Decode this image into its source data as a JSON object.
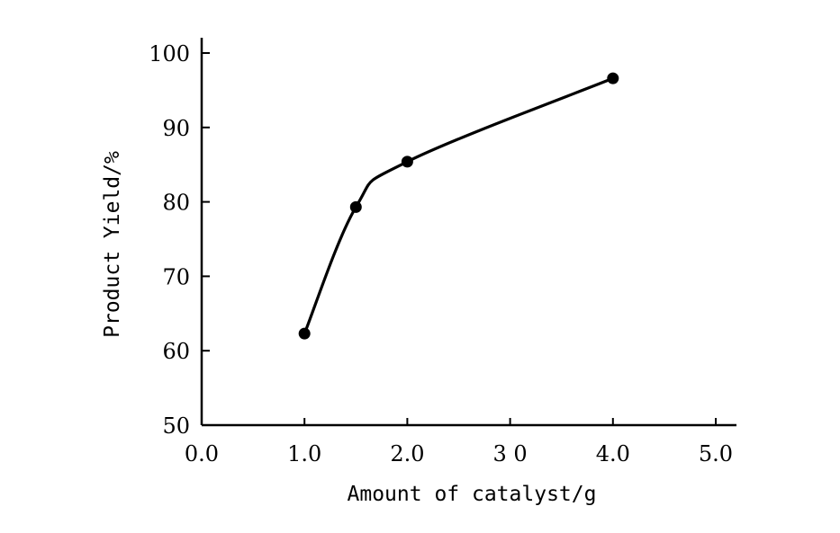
{
  "chart_data": {
    "type": "line",
    "title": "",
    "xlabel": "Amount of catalyst/g",
    "ylabel": "Product Yield/%",
    "xlim": [
      0,
      5
    ],
    "ylim": [
      50,
      100
    ],
    "x_ticks": [
      {
        "value": 0,
        "label": "0.0"
      },
      {
        "value": 1,
        "label": "1.0"
      },
      {
        "value": 2,
        "label": "2.0"
      },
      {
        "value": 3,
        "label": "3 0"
      },
      {
        "value": 4,
        "label": "4.0"
      },
      {
        "value": 5,
        "label": "5.0"
      }
    ],
    "y_ticks": [
      {
        "value": 50,
        "label": "50"
      },
      {
        "value": 60,
        "label": "60"
      },
      {
        "value": 70,
        "label": "70"
      },
      {
        "value": 80,
        "label": "80"
      },
      {
        "value": 90,
        "label": "90"
      },
      {
        "value": 100,
        "label": "100"
      }
    ],
    "grid": false,
    "legend": "none",
    "line_color": "#000000",
    "series": [
      {
        "x": [
          1.0,
          1.5,
          2.0,
          4.0
        ],
        "y": [
          62.3,
          79.3,
          85.4,
          96.6
        ]
      }
    ]
  }
}
